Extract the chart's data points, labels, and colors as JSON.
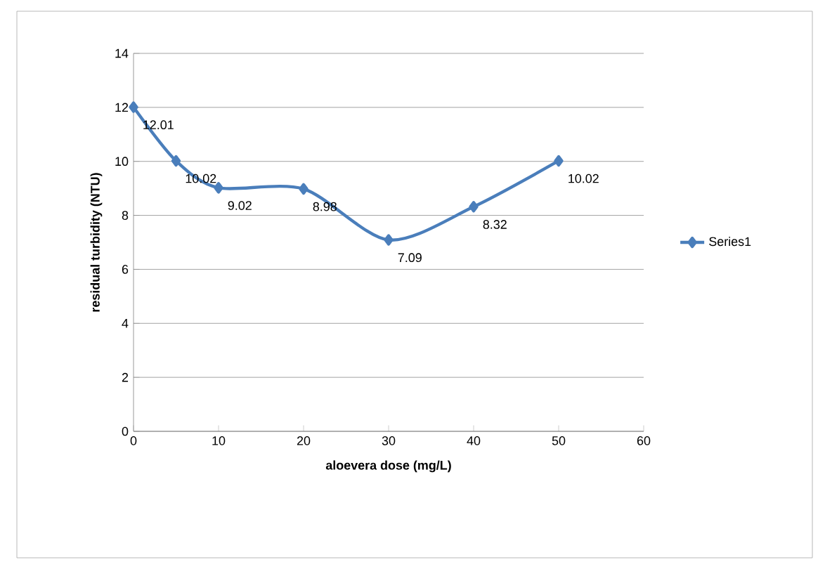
{
  "chart_data": {
    "type": "line",
    "xlabel": "aloevera dose (mg/L)",
    "ylabel": "residual turbidity (NTU)",
    "x": [
      0,
      5,
      10,
      20,
      30,
      40,
      50
    ],
    "series": [
      {
        "name": "Series1",
        "color": "#4a7ebb",
        "values": [
          12.01,
          10.02,
          9.02,
          8.98,
          7.09,
          8.32,
          10.02
        ]
      }
    ],
    "xlim": [
      0,
      60
    ],
    "xticks": [
      0,
      10,
      20,
      30,
      40,
      50,
      60
    ],
    "ylim": [
      0,
      14
    ],
    "yticks": [
      0,
      2,
      4,
      6,
      8,
      10,
      12,
      14
    ],
    "grid": "y",
    "legend": "right",
    "marker": "diamond",
    "line_style": "solid",
    "data_labels": true
  }
}
